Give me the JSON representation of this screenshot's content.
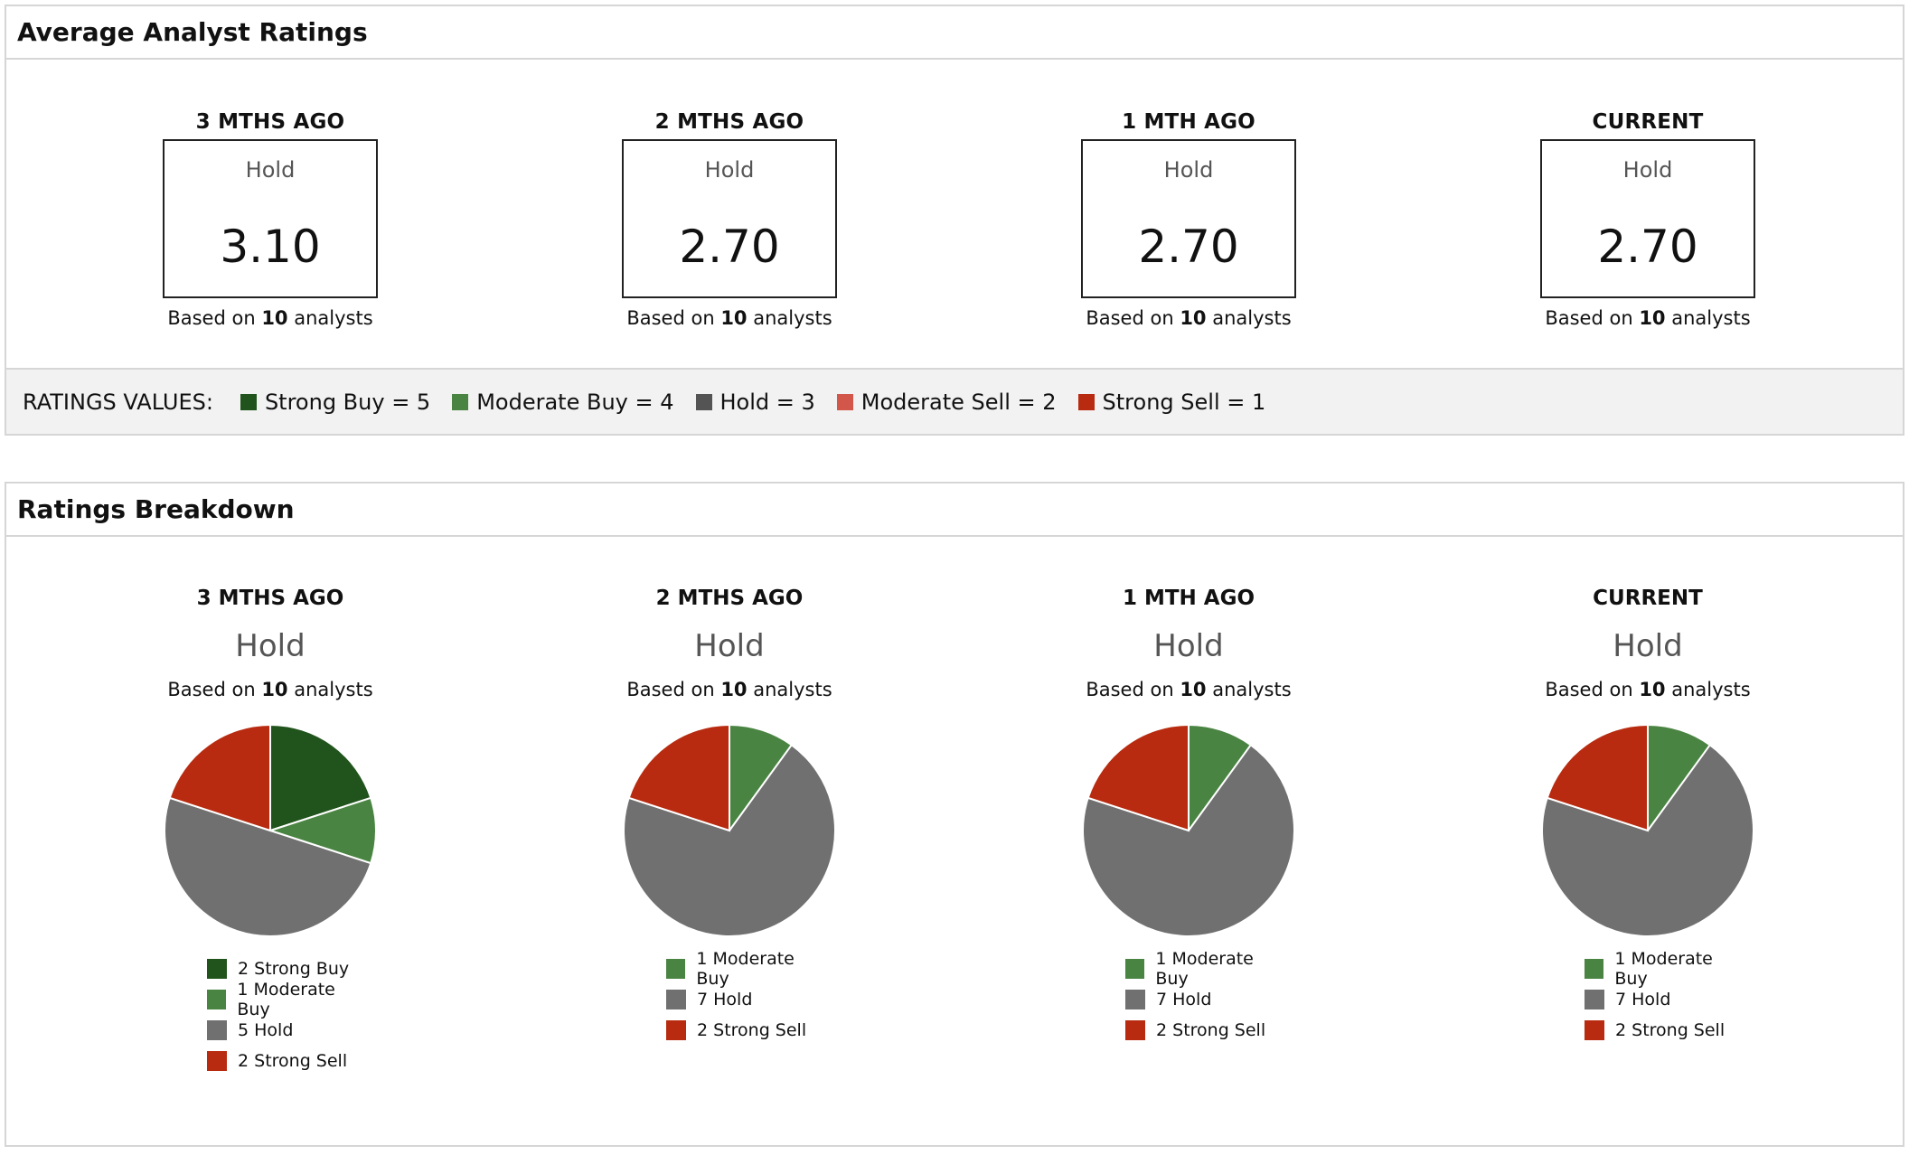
{
  "average_ratings": {
    "title": "Average Analyst Ratings",
    "columns": [
      {
        "period": "3 MTHS AGO",
        "label": "Hold",
        "value": "3.10",
        "based_prefix": "Based on ",
        "count": "10",
        "based_suffix": " analysts"
      },
      {
        "period": "2 MTHS AGO",
        "label": "Hold",
        "value": "2.70",
        "based_prefix": "Based on ",
        "count": "10",
        "based_suffix": " analysts"
      },
      {
        "period": "1 MTH AGO",
        "label": "Hold",
        "value": "2.70",
        "based_prefix": "Based on ",
        "count": "10",
        "based_suffix": " analysts"
      },
      {
        "period": "CURRENT",
        "label": "Hold",
        "value": "2.70",
        "based_prefix": "Based on ",
        "count": "10",
        "based_suffix": " analysts"
      }
    ],
    "legend": {
      "title": "RATINGS VALUES:",
      "items": [
        {
          "label": "Strong Buy = 5",
          "color": "#21541c"
        },
        {
          "label": "Moderate Buy = 4",
          "color": "#4a8442"
        },
        {
          "label": "Hold = 3",
          "color": "#545454"
        },
        {
          "label": "Moderate Sell = 2",
          "color": "#d2574a"
        },
        {
          "label": "Strong Sell = 1",
          "color": "#b82b10"
        }
      ]
    }
  },
  "breakdown": {
    "title": "Ratings Breakdown",
    "columns": [
      {
        "period": "3 MTHS AGO",
        "rating": "Hold",
        "based_prefix": "Based on ",
        "count": "10",
        "based_suffix": " analysts",
        "legend": [
          "2 Strong Buy",
          "1 Moderate Buy",
          "5 Hold",
          "2 Strong Sell"
        ]
      },
      {
        "period": "2 MTHS AGO",
        "rating": "Hold",
        "based_prefix": "Based on ",
        "count": "10",
        "based_suffix": " analysts",
        "legend": [
          "1 Moderate Buy",
          "7 Hold",
          "2 Strong Sell"
        ]
      },
      {
        "period": "1 MTH AGO",
        "rating": "Hold",
        "based_prefix": "Based on ",
        "count": "10",
        "based_suffix": " analysts",
        "legend": [
          "1 Moderate Buy",
          "7 Hold",
          "2 Strong Sell"
        ]
      },
      {
        "period": "CURRENT",
        "rating": "Hold",
        "based_prefix": "Based on ",
        "count": "10",
        "based_suffix": " analysts",
        "legend": [
          "1 Moderate Buy",
          "7 Hold",
          "2 Strong Sell"
        ]
      }
    ]
  },
  "chart_data": [
    {
      "type": "pie",
      "categories": [
        "Strong Buy",
        "Moderate Buy",
        "Hold",
        "Strong Sell"
      ],
      "values": [
        2,
        1,
        5,
        2
      ],
      "colors": [
        "#21541c",
        "#4a8442",
        "#707070",
        "#b82b10"
      ]
    },
    {
      "type": "pie",
      "categories": [
        "Moderate Buy",
        "Hold",
        "Strong Sell"
      ],
      "values": [
        1,
        7,
        2
      ],
      "colors": [
        "#4a8442",
        "#707070",
        "#b82b10"
      ]
    },
    {
      "type": "pie",
      "categories": [
        "Moderate Buy",
        "Hold",
        "Strong Sell"
      ],
      "values": [
        1,
        7,
        2
      ],
      "colors": [
        "#4a8442",
        "#707070",
        "#b82b10"
      ]
    },
    {
      "type": "pie",
      "categories": [
        "Moderate Buy",
        "Hold",
        "Strong Sell"
      ],
      "values": [
        1,
        7,
        2
      ],
      "colors": [
        "#4a8442",
        "#707070",
        "#b82b10"
      ]
    }
  ]
}
